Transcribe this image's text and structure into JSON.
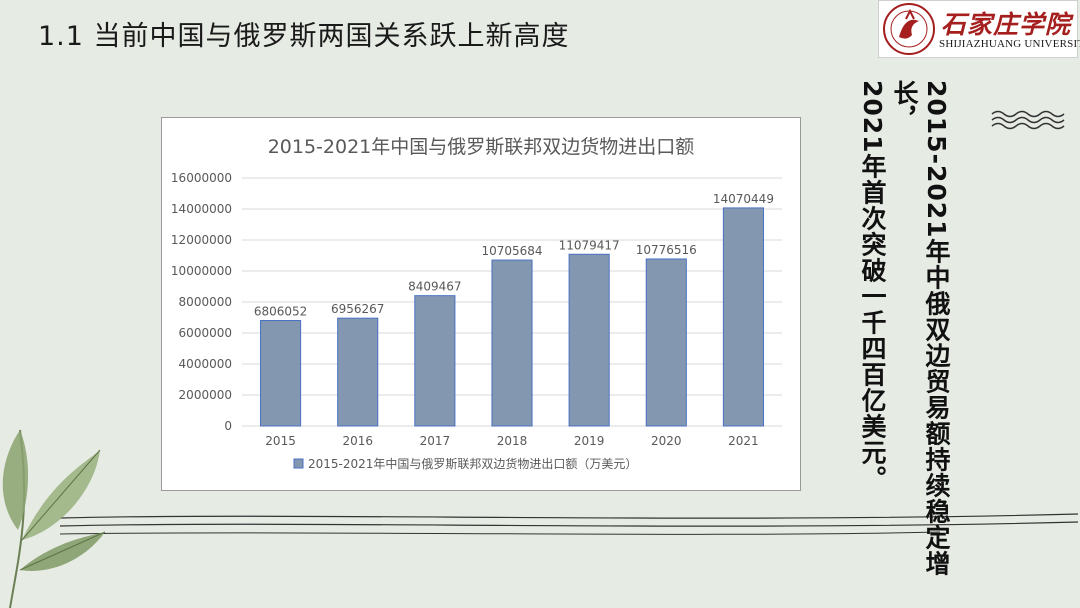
{
  "slide": {
    "title": "1.1 当前中国与俄罗斯两国关系跃上新高度"
  },
  "logo": {
    "name_cn": "石家庄学院",
    "name_en": "SHIJIAZHUANG UNIVERSITY",
    "emblem_icon": "university-seal-icon",
    "brand_color": "#a51f1f"
  },
  "side_text": {
    "line1": "2015-2021年中俄双边贸易额持续稳定增长，",
    "line2": "2021年首次突破一千四百亿美元。"
  },
  "chart_data": {
    "type": "bar",
    "title": "2015-2021年中国与俄罗斯联邦双边货物进出口额",
    "categories": [
      "2015",
      "2016",
      "2017",
      "2018",
      "2019",
      "2020",
      "2021"
    ],
    "series": [
      {
        "name": "2015-2021年中国与俄罗斯联邦双边货物进出口额（万美元）",
        "values": [
          6806052,
          6956267,
          8409467,
          10705684,
          11079417,
          10776516,
          14070449
        ],
        "color": "#8497b0"
      }
    ],
    "data_labels": [
      "6806052",
      "6956267",
      "8409467",
      "10705684",
      "11079417",
      "10776516",
      "14070449"
    ],
    "ylim": [
      0,
      16000000
    ],
    "yticks": [
      0,
      2000000,
      4000000,
      6000000,
      8000000,
      10000000,
      12000000,
      14000000,
      16000000
    ],
    "ytick_labels": [
      "0",
      "2000000",
      "4000000",
      "6000000",
      "8000000",
      "10000000",
      "12000000",
      "14000000",
      "16000000"
    ],
    "grid": true,
    "legend_position": "bottom",
    "xlabel": "",
    "ylabel": ""
  },
  "colors": {
    "background": "#e6ebe4",
    "bar": "#8497b0",
    "bar_edge": "#4a72c4",
    "gridline": "#d9d9d9",
    "axis_text": "#595959",
    "decor_line": "#333333"
  },
  "decorations": {
    "plant_icon": "tropical-leaf-icon",
    "wave_icon": "wave-lines-icon"
  }
}
